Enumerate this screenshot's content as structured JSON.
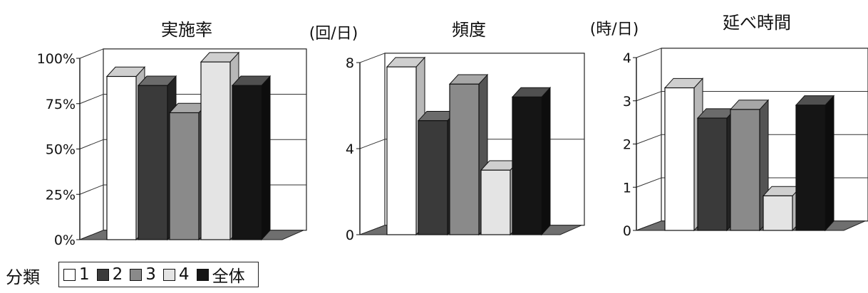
{
  "chart_data": [
    {
      "type": "bar",
      "title": "実施率",
      "unit": "",
      "categories": [
        "1",
        "2",
        "3",
        "4",
        "全体"
      ],
      "values": [
        90,
        85,
        70,
        98,
        85
      ],
      "ylim": [
        0,
        100
      ],
      "yticks": [
        0,
        25,
        50,
        75,
        100
      ],
      "ytick_labels": [
        "0%",
        "25%",
        "50%",
        "75%",
        "100%"
      ],
      "grid": true
    },
    {
      "type": "bar",
      "title": "頻度",
      "unit": "(回/日)",
      "categories": [
        "1",
        "2",
        "3",
        "4",
        "全体"
      ],
      "values": [
        7.8,
        5.3,
        7.0,
        3.0,
        6.4
      ],
      "ylim": [
        0,
        8
      ],
      "yticks": [
        0,
        4,
        8
      ],
      "ytick_labels": [
        "0",
        "4",
        "8"
      ],
      "grid": true
    },
    {
      "type": "bar",
      "title": "延べ時間",
      "unit": "(時/日)",
      "categories": [
        "1",
        "2",
        "3",
        "4",
        "全体"
      ],
      "values": [
        3.3,
        2.6,
        2.8,
        0.8,
        2.9
      ],
      "ylim": [
        0,
        4
      ],
      "yticks": [
        0,
        1,
        2,
        3,
        4
      ],
      "ytick_labels": [
        "0",
        "1",
        "2",
        "3",
        "4"
      ],
      "grid": true
    }
  ],
  "legend": {
    "title": "分類",
    "items": [
      {
        "label": "1",
        "color": "#ffffff"
      },
      {
        "label": "2",
        "color": "#3a3a3a"
      },
      {
        "label": "3",
        "color": "#8a8a8a"
      },
      {
        "label": "4",
        "color": "#e4e4e4"
      },
      {
        "label": "全体",
        "color": "#151515"
      }
    ]
  }
}
